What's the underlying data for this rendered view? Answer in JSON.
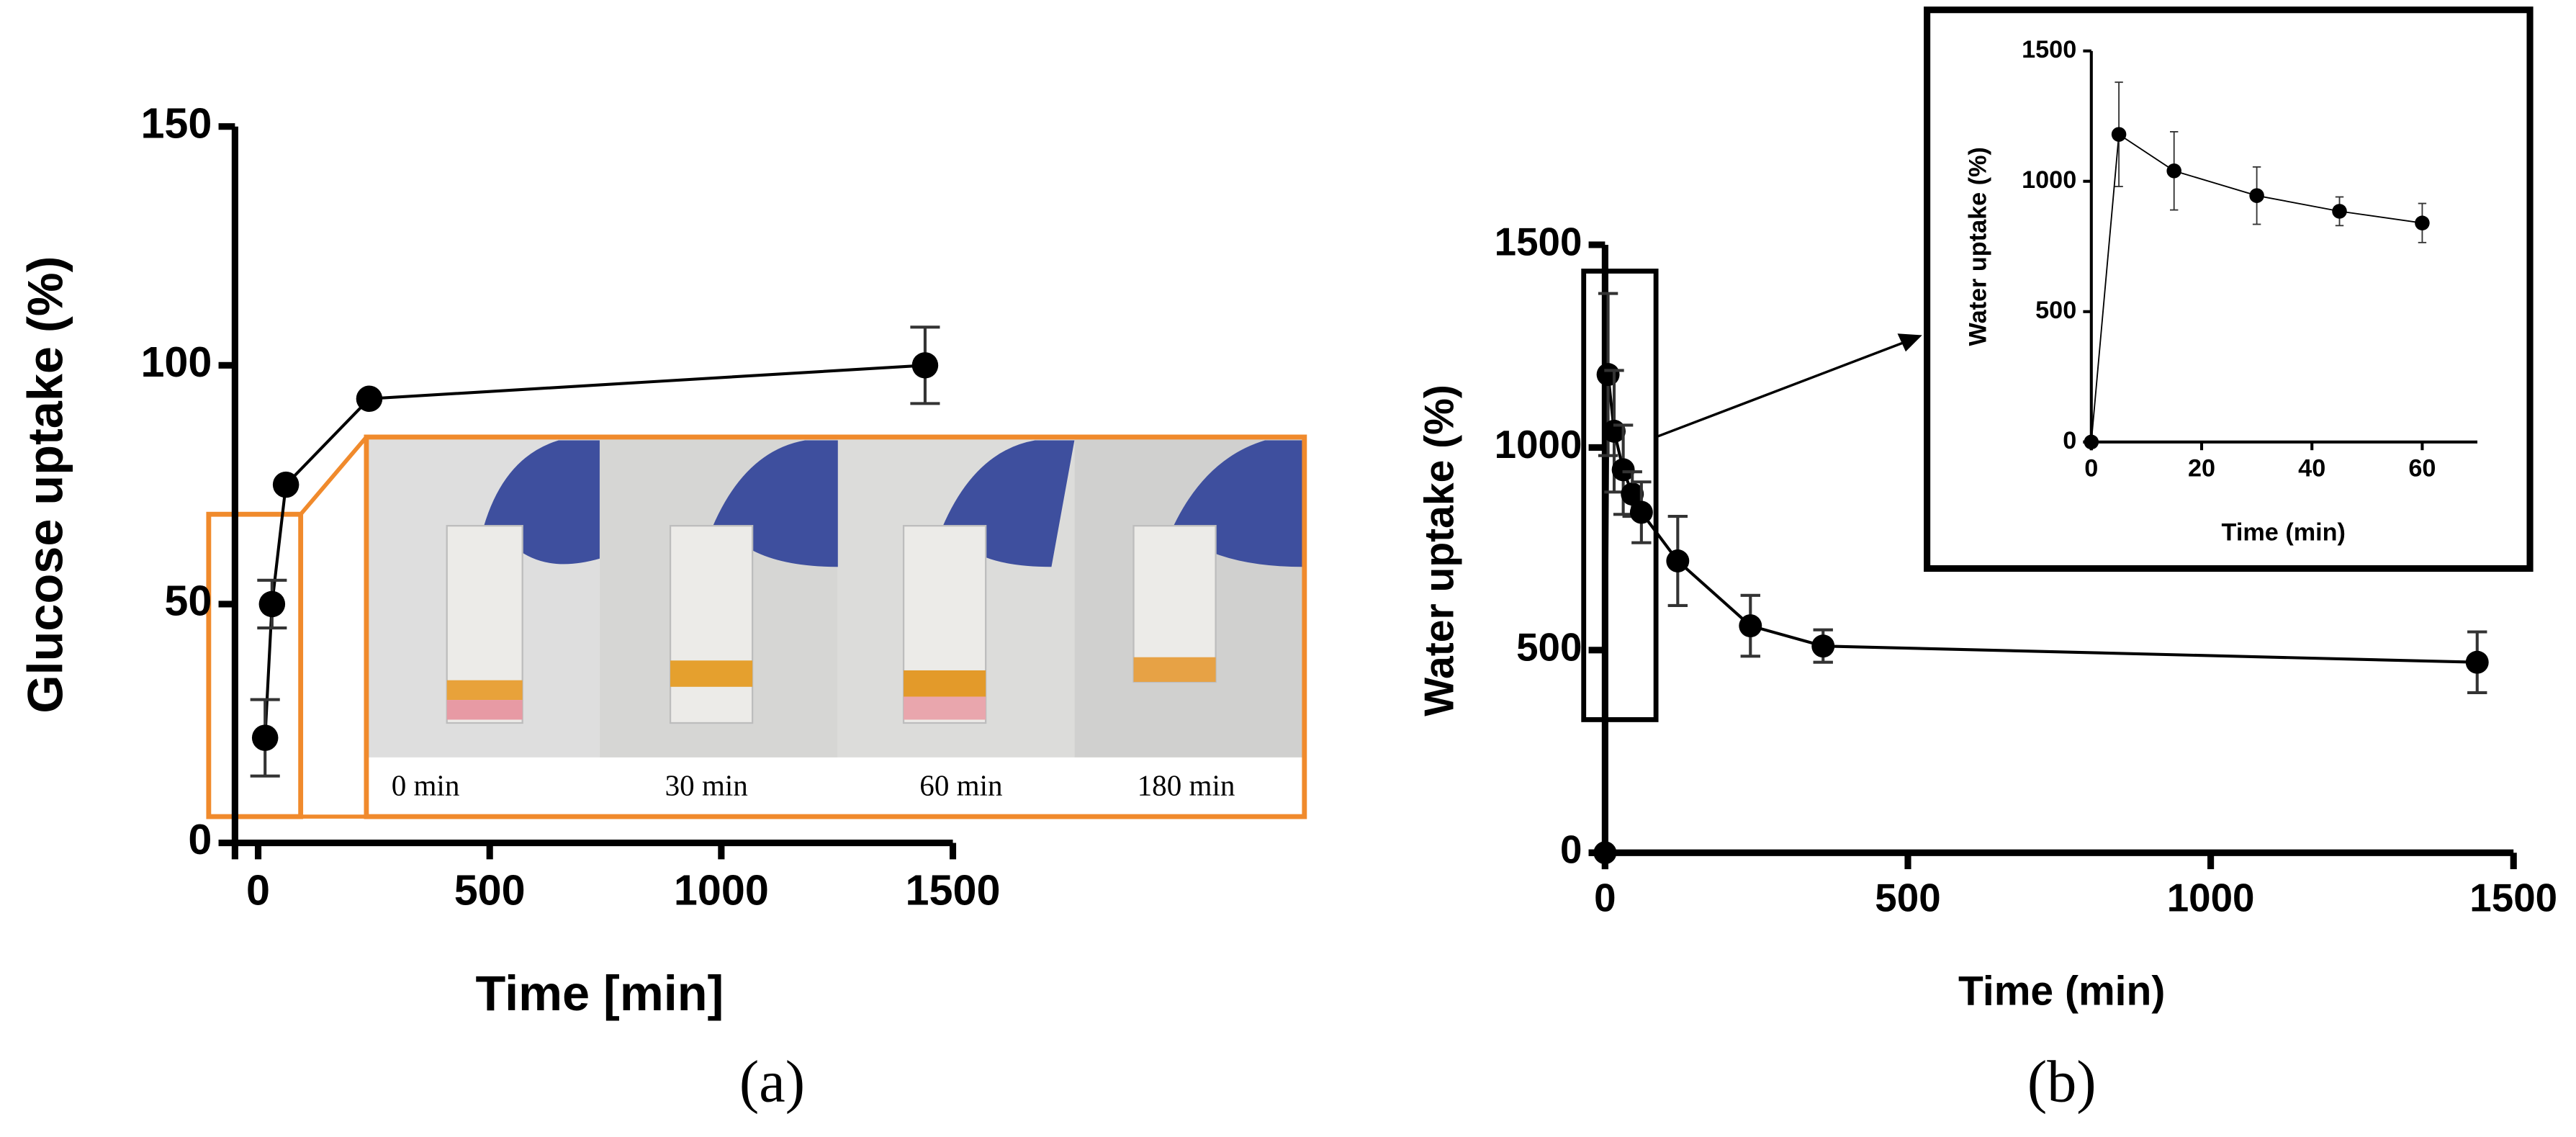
{
  "chart_data": [
    {
      "type": "line",
      "caption": "(a)",
      "x_label": "Time [min]",
      "y_label": "Glucose uptake (%)",
      "x": [
        15,
        30,
        60,
        240,
        1440
      ],
      "series": [
        {
          "color": "#000000",
          "values": [
            22,
            50,
            75,
            93,
            100
          ],
          "errors": [
            8,
            5,
            null,
            null,
            8
          ]
        }
      ],
      "xlim": [
        -50,
        1500
      ],
      "ylim": [
        0,
        150
      ],
      "xticks": [
        0,
        500,
        1000,
        1500
      ],
      "yticks": [
        0,
        50,
        100,
        150
      ],
      "annotations": [
        "0 min",
        "30 min",
        "60 min",
        "180 min"
      ]
    },
    {
      "type": "line",
      "caption": "(b)",
      "x_label": "Time (min)",
      "y_label": "Water uptake (%)",
      "x": [
        0,
        5,
        15,
        30,
        45,
        60,
        120,
        240,
        360,
        1440
      ],
      "series": [
        {
          "color": "#000000",
          "values": [
            0,
            1180,
            1040,
            945,
            885,
            840,
            720,
            560,
            510,
            470
          ],
          "errors": [
            null,
            200,
            150,
            110,
            55,
            75,
            110,
            75,
            40,
            75
          ]
        }
      ],
      "xlim": [
        0,
        1500
      ],
      "ylim": [
        0,
        1500
      ],
      "xticks": [
        0,
        500,
        1000,
        1500
      ],
      "yticks": [
        0,
        500,
        1000,
        1500
      ]
    },
    {
      "type": "line",
      "x_label": "Time (min)",
      "y_label": "Water uptake (%)",
      "x": [
        0,
        5,
        15,
        30,
        45,
        60
      ],
      "series": [
        {
          "color": "#000000",
          "values": [
            0,
            1180,
            1040,
            945,
            885,
            840
          ],
          "errors": [
            null,
            200,
            150,
            110,
            55,
            75
          ]
        }
      ],
      "xlim": [
        0,
        70
      ],
      "ylim": [
        0,
        1500
      ],
      "xticks": [
        0,
        20,
        40,
        60
      ],
      "yticks": [
        0,
        500,
        1000,
        1500
      ]
    }
  ]
}
